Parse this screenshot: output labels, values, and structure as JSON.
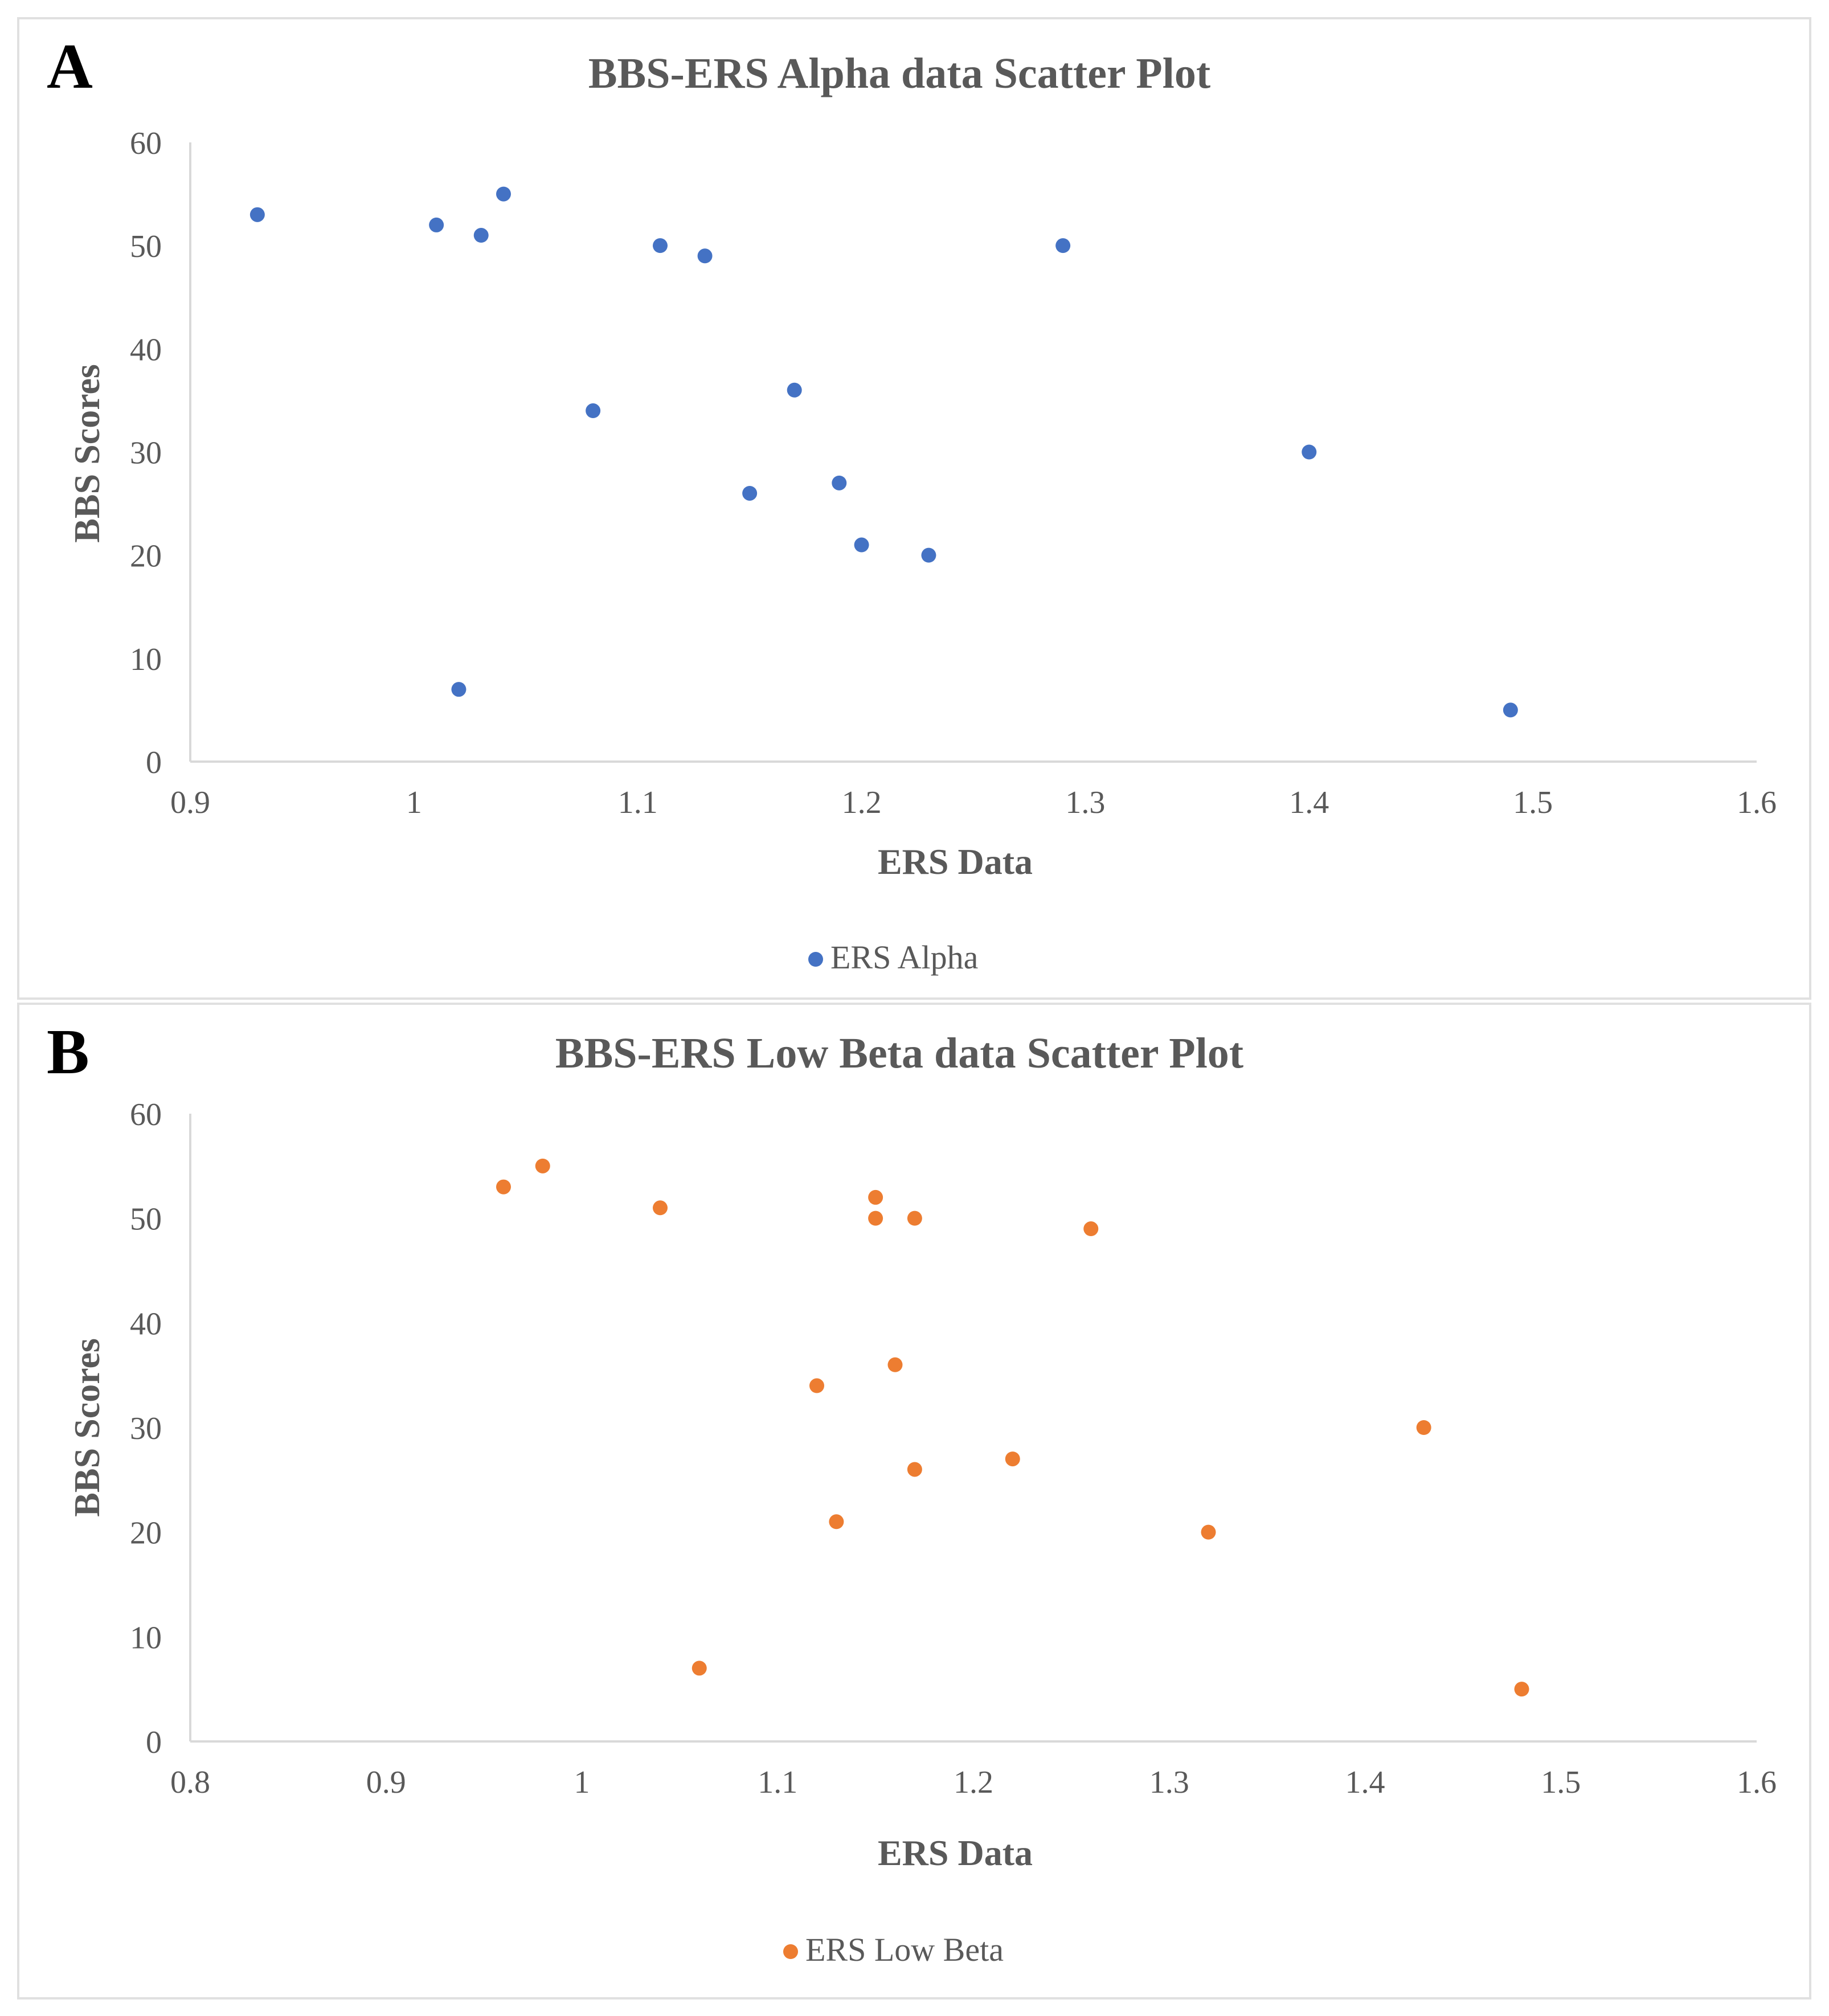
{
  "chart_data": [
    {
      "type": "scatter",
      "panel_label": "A",
      "title": "BBS-ERS Alpha data Scatter Plot",
      "xlabel": "ERS Data",
      "ylabel": "BBS Scores",
      "xlim": [
        0.9,
        1.6
      ],
      "ylim": [
        0,
        60
      ],
      "xticks": [
        0.9,
        1,
        1.1,
        1.2,
        1.3,
        1.4,
        1.5,
        1.6
      ],
      "xtick_labels": [
        "0.9",
        "1",
        "1.1",
        "1.2",
        "1.3",
        "1.4",
        "1.5",
        "1.6"
      ],
      "yticks": [
        0,
        10,
        20,
        30,
        40,
        50,
        60
      ],
      "ytick_labels": [
        "0",
        "10",
        "20",
        "30",
        "40",
        "50",
        "60"
      ],
      "grid": false,
      "legend_position": "bottom-center",
      "series": [
        {
          "name": "ERS Alpha",
          "color": "#4472c4",
          "points": [
            {
              "x": 0.93,
              "y": 53
            },
            {
              "x": 1.01,
              "y": 52
            },
            {
              "x": 1.02,
              "y": 7
            },
            {
              "x": 1.03,
              "y": 51
            },
            {
              "x": 1.04,
              "y": 55
            },
            {
              "x": 1.08,
              "y": 34
            },
            {
              "x": 1.11,
              "y": 50
            },
            {
              "x": 1.13,
              "y": 49
            },
            {
              "x": 1.15,
              "y": 26
            },
            {
              "x": 1.17,
              "y": 36
            },
            {
              "x": 1.19,
              "y": 27
            },
            {
              "x": 1.2,
              "y": 21
            },
            {
              "x": 1.23,
              "y": 20
            },
            {
              "x": 1.29,
              "y": 50
            },
            {
              "x": 1.4,
              "y": 30
            },
            {
              "x": 1.49,
              "y": 5
            }
          ]
        }
      ]
    },
    {
      "type": "scatter",
      "panel_label": "B",
      "title": "BBS-ERS Low Beta data Scatter Plot",
      "xlabel": "ERS Data",
      "ylabel": "BBS Scores",
      "xlim": [
        0.8,
        1.6
      ],
      "ylim": [
        0,
        60
      ],
      "xticks": [
        0.8,
        0.9,
        1,
        1.1,
        1.2,
        1.3,
        1.4,
        1.5,
        1.6
      ],
      "xtick_labels": [
        "0.8",
        "0.9",
        "1",
        "1.1",
        "1.2",
        "1.3",
        "1.4",
        "1.5",
        "1.6"
      ],
      "yticks": [
        0,
        10,
        20,
        30,
        40,
        50,
        60
      ],
      "ytick_labels": [
        "0",
        "10",
        "20",
        "30",
        "40",
        "50",
        "60"
      ],
      "grid": false,
      "legend_position": "bottom-center",
      "series": [
        {
          "name": "ERS Low Beta",
          "color": "#ed7d31",
          "points": [
            {
              "x": 0.96,
              "y": 53
            },
            {
              "x": 0.98,
              "y": 55
            },
            {
              "x": 1.04,
              "y": 51
            },
            {
              "x": 1.06,
              "y": 7
            },
            {
              "x": 1.12,
              "y": 34
            },
            {
              "x": 1.13,
              "y": 21
            },
            {
              "x": 1.15,
              "y": 52
            },
            {
              "x": 1.15,
              "y": 50
            },
            {
              "x": 1.16,
              "y": 36
            },
            {
              "x": 1.17,
              "y": 50
            },
            {
              "x": 1.17,
              "y": 26
            },
            {
              "x": 1.22,
              "y": 27
            },
            {
              "x": 1.26,
              "y": 49
            },
            {
              "x": 1.32,
              "y": 20
            },
            {
              "x": 1.43,
              "y": 30
            },
            {
              "x": 1.48,
              "y": 5
            }
          ]
        }
      ]
    }
  ]
}
